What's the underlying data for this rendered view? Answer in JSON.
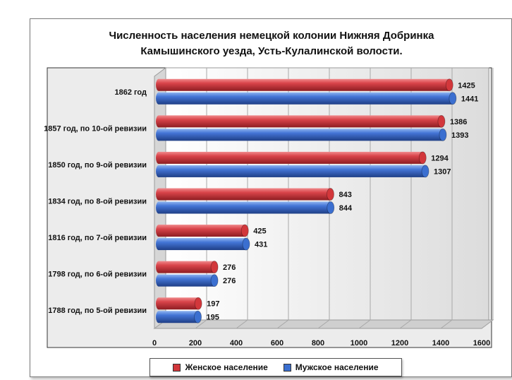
{
  "chart_data": {
    "type": "bar",
    "orientation": "horizontal",
    "title_lines": [
      "Численность населения немецкой колонии Нижняя Добринка",
      "Камышинского уезда, Усть-Кулалинской волости."
    ],
    "categories": [
      "1862 год",
      "1857 год, по 10-ой ревизии",
      "1850 год, по 9-ой ревизии",
      "1834 год, по 8-ой ревизии",
      "1816 год, по 7-ой ревизии",
      "1798 год, по 6-ой ревизии",
      "1788 год, по 5-ой ревизии"
    ],
    "series": [
      {
        "name": "Женское население",
        "color": "#d2373b",
        "values": [
          1425,
          1386,
          1294,
          843,
          425,
          276,
          197
        ]
      },
      {
        "name": "Мужское население",
        "color": "#3b6fd0",
        "values": [
          1441,
          1393,
          1307,
          844,
          431,
          276,
          195
        ]
      }
    ],
    "xlim": [
      0,
      1600
    ],
    "xticks": [
      "0",
      "200",
      "400",
      "600",
      "800",
      "1000",
      "1200",
      "1400",
      "1600"
    ],
    "grid": true,
    "legend_position": "bottom",
    "style": "3d-cylinder"
  }
}
